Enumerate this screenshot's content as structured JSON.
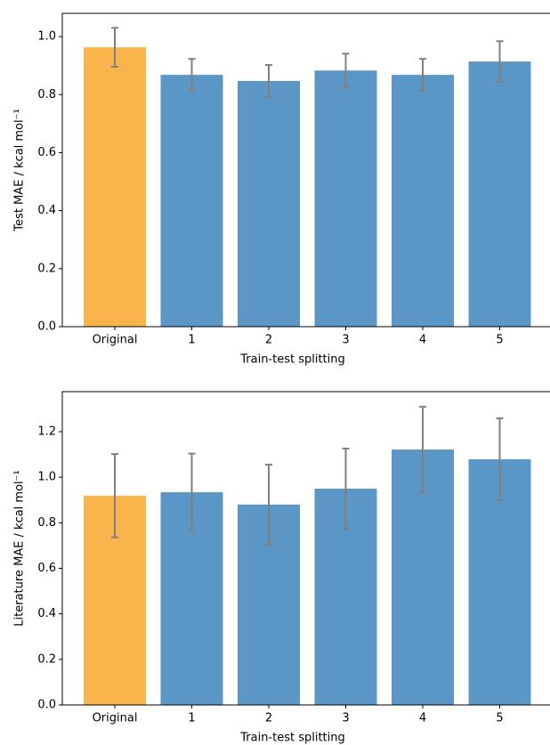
{
  "chart_data": [
    {
      "type": "bar",
      "ylabel": "Test MAE / kcal mol⁻¹",
      "xlabel": "Train-test splitting",
      "categories": [
        "Original",
        "1",
        "2",
        "3",
        "4",
        "5"
      ],
      "values": [
        0.963,
        0.868,
        0.847,
        0.883,
        0.868,
        0.914
      ],
      "errors": [
        0.067,
        0.055,
        0.055,
        0.058,
        0.055,
        0.07
      ],
      "colors": [
        "#f9b44c",
        "#5b97c6",
        "#5b97c6",
        "#5b97c6",
        "#5b97c6",
        "#5b97c6"
      ],
      "error_color": "#808080",
      "ylim": [
        0,
        1.08
      ],
      "yticks": [
        {
          "value": 0,
          "label": "0.0"
        },
        {
          "value": 0.2,
          "label": "0.2"
        },
        {
          "value": 0.4,
          "label": "0.4"
        },
        {
          "value": 0.6,
          "label": "0.6"
        },
        {
          "value": 0.8,
          "label": "0.8"
        },
        {
          "value": 1,
          "label": "1.0"
        }
      ]
    },
    {
      "type": "bar",
      "ylabel": "Literature MAE / kcal mol⁻¹",
      "xlabel": "Train-test splitting",
      "categories": [
        "Original",
        "1",
        "2",
        "3",
        "4",
        "5"
      ],
      "values": [
        0.919,
        0.934,
        0.88,
        0.95,
        1.122,
        1.079
      ],
      "errors": [
        0.183,
        0.17,
        0.175,
        0.176,
        0.188,
        0.18
      ],
      "colors": [
        "#f9b44c",
        "#5b97c6",
        "#5b97c6",
        "#5b97c6",
        "#5b97c6",
        "#5b97c6"
      ],
      "error_color": "#808080",
      "ylim": [
        0,
        1.376
      ],
      "yticks": [
        {
          "value": 0,
          "label": "0.0"
        },
        {
          "value": 0.2,
          "label": "0.2"
        },
        {
          "value": 0.4,
          "label": "0.4"
        },
        {
          "value": 0.6,
          "label": "0.6"
        },
        {
          "value": 0.8,
          "label": "0.8"
        },
        {
          "value": 1,
          "label": "1.0"
        },
        {
          "value": 1.2,
          "label": "1.2"
        }
      ]
    }
  ]
}
